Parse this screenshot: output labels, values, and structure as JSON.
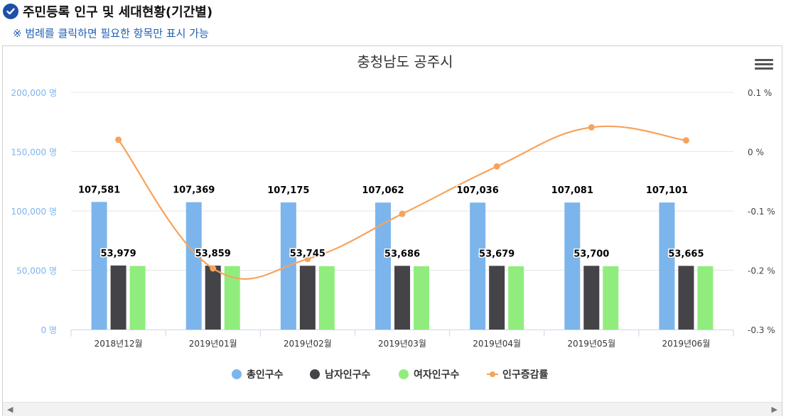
{
  "header": {
    "title": "주민등록 인구 및 세대현황(기간별)",
    "note": "※ 범례를 클릭하면 필요한 항목만 표시 가능",
    "icon": "check-circle-icon",
    "accent_color": "#1f4fa8",
    "note_color": "#1f5fb4"
  },
  "toolbar": {
    "menu_icon": "hamburger-menu-icon"
  },
  "scrollbar": {
    "left_icon": "◀",
    "right_icon": "▶"
  },
  "chart_data": {
    "type": "bar",
    "title": "충청남도 공주시",
    "categories": [
      "2018년12월",
      "2019년01월",
      "2019년02월",
      "2019년03월",
      "2019년04월",
      "2019년05월",
      "2019년06월"
    ],
    "series": [
      {
        "name": "총인구수",
        "type": "bar",
        "color": "#7cb5ec",
        "axis": "left",
        "values": [
          107581,
          107369,
          107175,
          107062,
          107036,
          107081,
          107101
        ],
        "labels": [
          "107,581",
          "107,369",
          "107,175",
          "107,062",
          "107,036",
          "107,081",
          "107,101"
        ]
      },
      {
        "name": "남자인구수",
        "type": "bar",
        "color": "#434348",
        "axis": "left",
        "values": [
          53979,
          53859,
          53745,
          53686,
          53679,
          53700,
          53665
        ],
        "labels": [
          "53,979",
          "53,859",
          "53,745",
          "53,686",
          "53,679",
          "53,700",
          "53,665"
        ]
      },
      {
        "name": "여자인구수",
        "type": "bar",
        "color": "#90ed7d",
        "axis": "left",
        "values": [
          53602,
          53510,
          53430,
          53376,
          53357,
          53381,
          53436
        ]
      },
      {
        "name": "인구증감률",
        "type": "line",
        "color": "#f7a35c",
        "axis": "right",
        "values": [
          0.02,
          -0.197,
          -0.181,
          -0.105,
          -0.025,
          0.041,
          0.019
        ]
      }
    ],
    "y_left": {
      "ylim": [
        0,
        200000
      ],
      "ticks": [
        0,
        50000,
        100000,
        150000,
        200000
      ],
      "tick_labels": [
        "0 명",
        "50,000 명",
        "100,000 명",
        "150,000 명",
        "200,000 명"
      ],
      "color": "#7cb5ec"
    },
    "y_right": {
      "ylim": [
        -0.3,
        0.1
      ],
      "ticks": [
        -0.3,
        -0.2,
        -0.1,
        0,
        0.1
      ],
      "tick_labels": [
        "-0.3 %",
        "-0.2 %",
        "-0.1 %",
        "0 %",
        "0.1 %"
      ]
    },
    "grid": true,
    "legend_position": "bottom-center",
    "legend": [
      "총인구수",
      "남자인구수",
      "여자인구수",
      "인구증감률"
    ]
  }
}
